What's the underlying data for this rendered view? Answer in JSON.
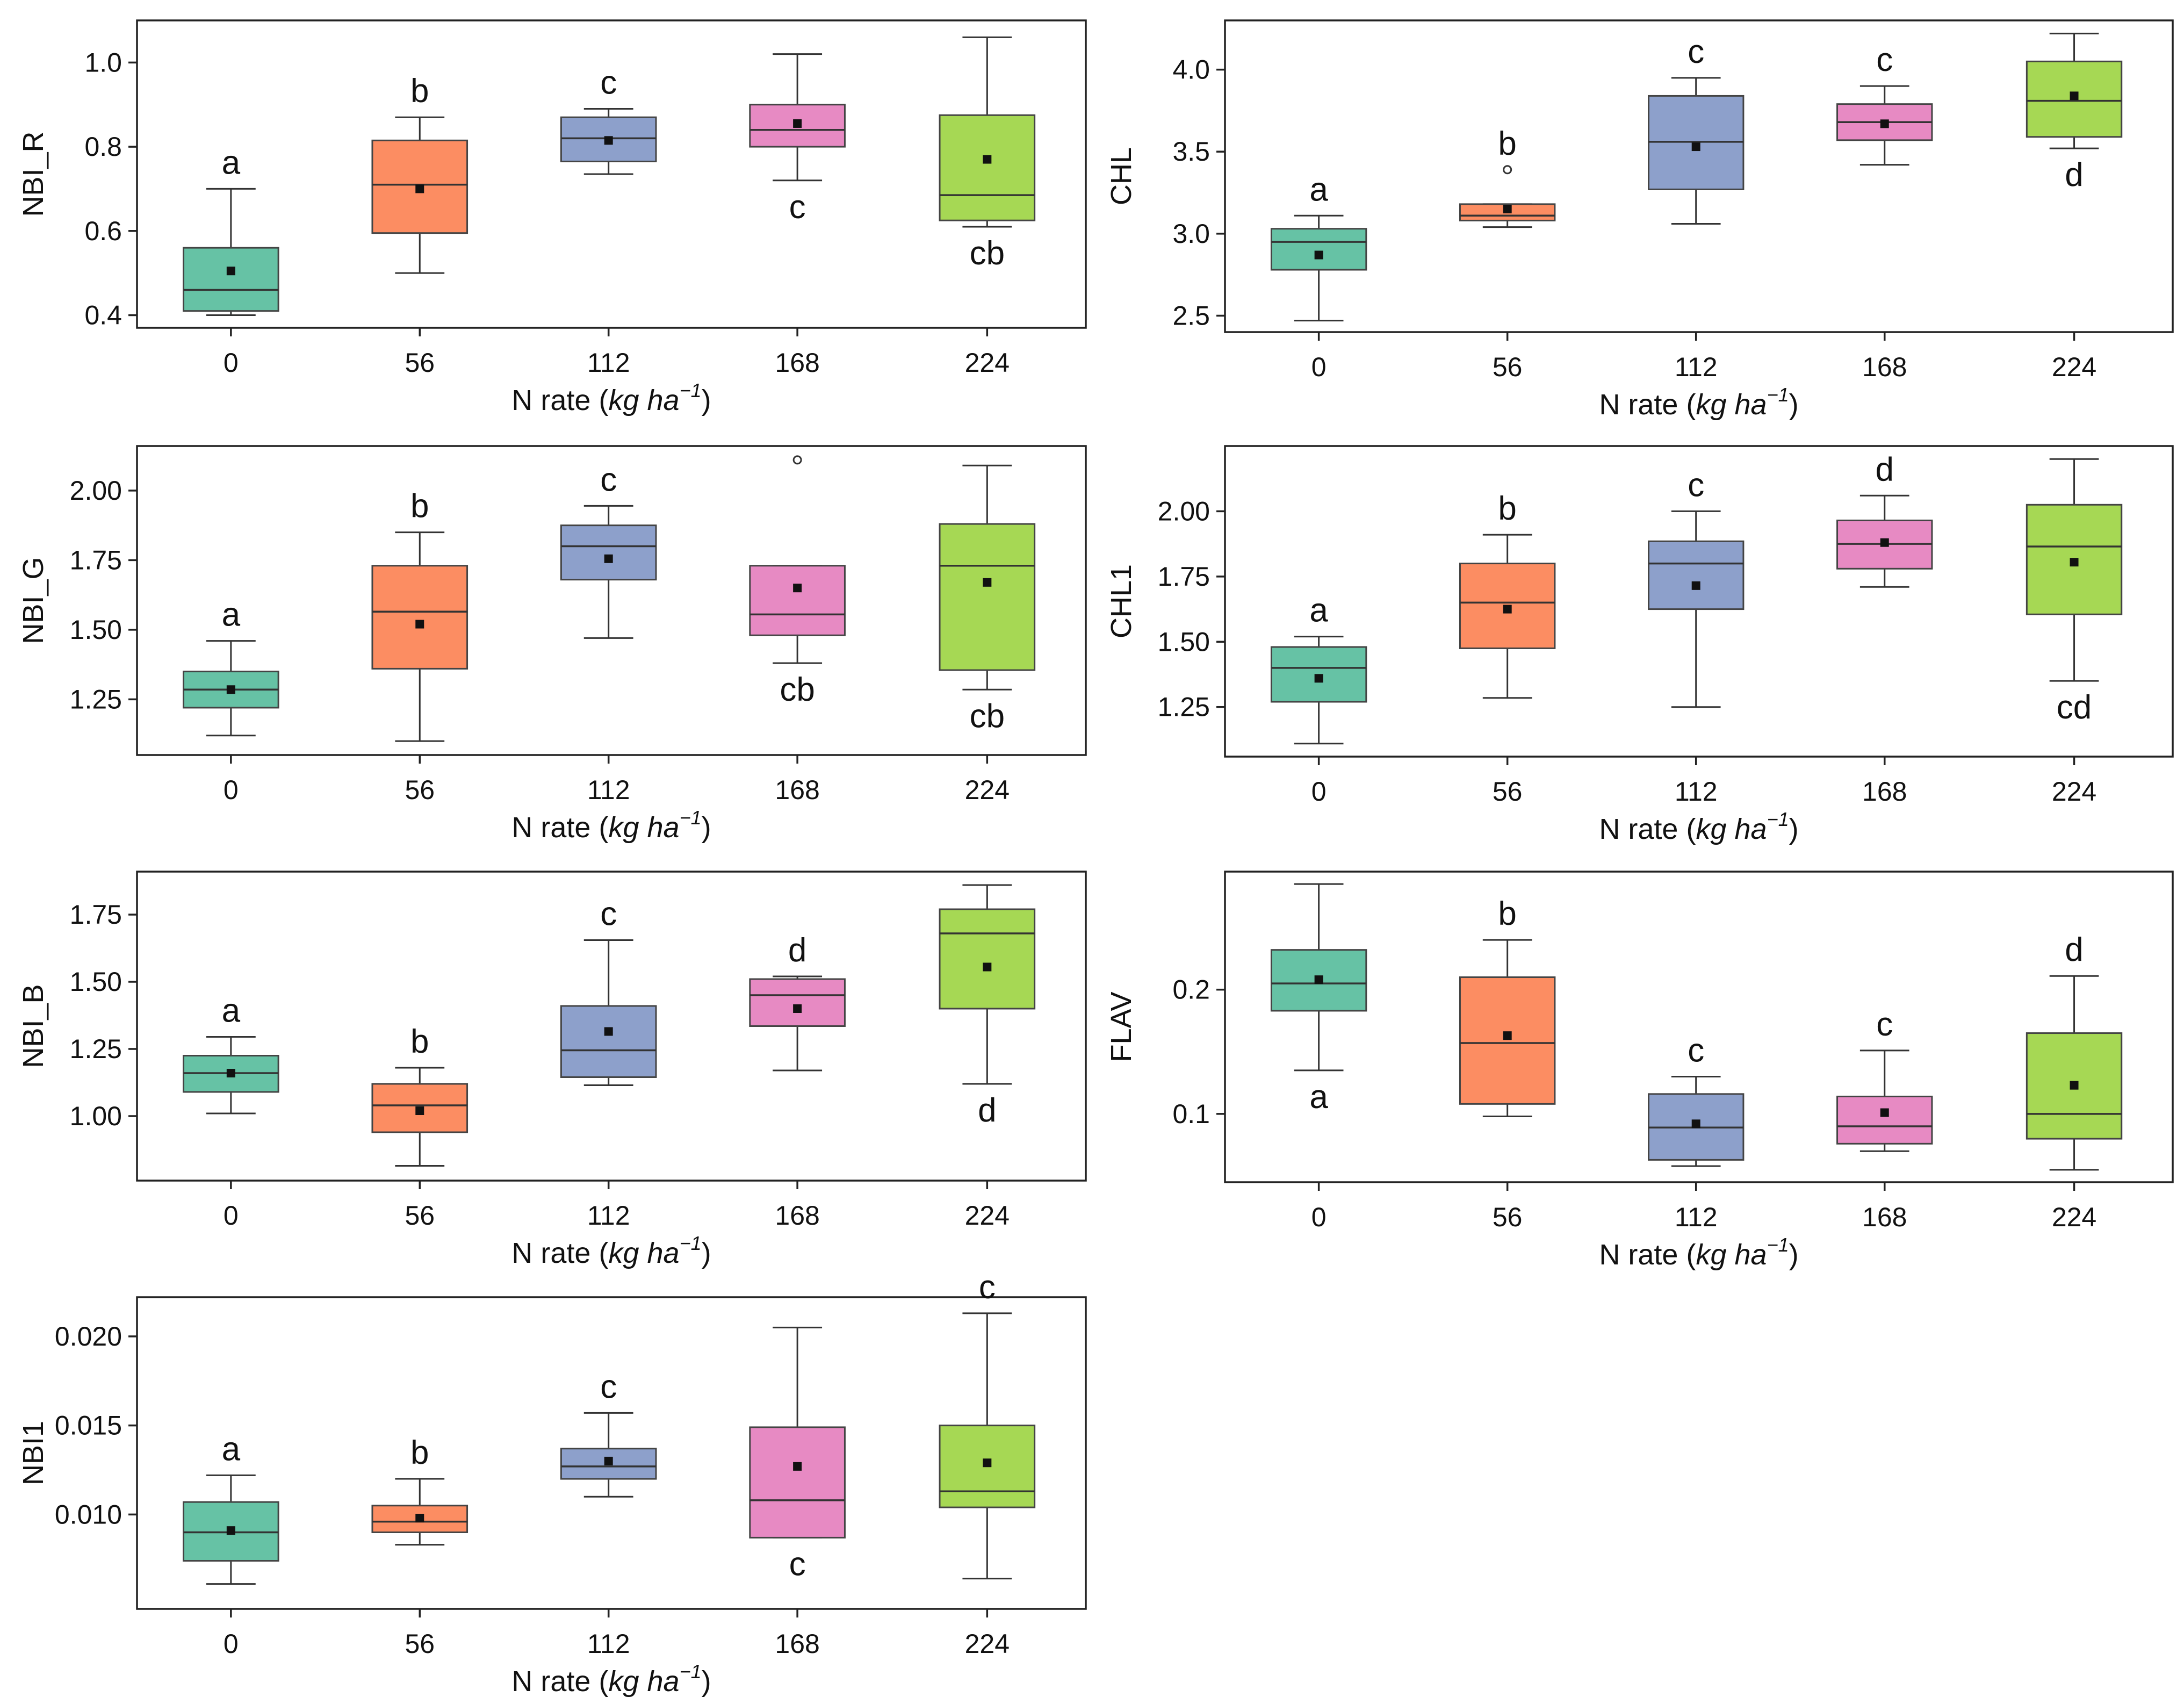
{
  "figure": {
    "colors": {
      "0": "#66c2a5",
      "56": "#fc8d62",
      "112": "#8da0cb",
      "168": "#e78ac3",
      "224": "#a6d854"
    }
  },
  "chart_data": [
    {
      "type": "box",
      "ylabel": "NBI_R",
      "xlabel_prefix": "N rate (",
      "xlabel_unit": "kg ha",
      "xlabel_exp": "−1",
      "xlabel_suffix": ")",
      "categories": [
        "0",
        "56",
        "112",
        "168",
        "224"
      ],
      "ylim": [
        0.37,
        1.1
      ],
      "yticks": [
        0.4,
        0.6,
        0.8,
        1.0
      ],
      "ytick_labels": [
        "0.4",
        "0.6",
        "0.8",
        "1.0"
      ],
      "boxes": [
        {
          "min": 0.4,
          "q1": 0.41,
          "median": 0.46,
          "q3": 0.56,
          "max": 0.7,
          "mean": 0.505,
          "outliers": [],
          "letter": "a",
          "letter_pos": "above"
        },
        {
          "min": 0.5,
          "q1": 0.595,
          "median": 0.71,
          "q3": 0.815,
          "max": 0.87,
          "mean": 0.7,
          "outliers": [],
          "letter": "b",
          "letter_pos": "above"
        },
        {
          "min": 0.735,
          "q1": 0.765,
          "median": 0.82,
          "q3": 0.87,
          "max": 0.89,
          "mean": 0.815,
          "outliers": [],
          "letter": "c",
          "letter_pos": "above"
        },
        {
          "min": 0.72,
          "q1": 0.8,
          "median": 0.84,
          "q3": 0.9,
          "max": 1.02,
          "mean": 0.855,
          "outliers": [],
          "letter": "c",
          "letter_pos": "below"
        },
        {
          "min": 0.61,
          "q1": 0.625,
          "median": 0.685,
          "q3": 0.875,
          "max": 1.06,
          "mean": 0.77,
          "outliers": [],
          "letter": "cb",
          "letter_pos": "below"
        }
      ]
    },
    {
      "type": "box",
      "ylabel": "CHL",
      "xlabel_prefix": "N rate (",
      "xlabel_unit": "kg ha",
      "xlabel_exp": "−1",
      "xlabel_suffix": ")",
      "categories": [
        "0",
        "56",
        "112",
        "168",
        "224"
      ],
      "ylim": [
        2.4,
        4.3
      ],
      "yticks": [
        2.5,
        3.0,
        3.5,
        4.0
      ],
      "ytick_labels": [
        "2.5",
        "3.0",
        "3.5",
        "4.0"
      ],
      "boxes": [
        {
          "min": 2.47,
          "q1": 2.78,
          "median": 2.95,
          "q3": 3.03,
          "max": 3.11,
          "mean": 2.87,
          "outliers": [],
          "letter": "a",
          "letter_pos": "above"
        },
        {
          "min": 3.04,
          "q1": 3.08,
          "median": 3.11,
          "q3": 3.18,
          "max": 3.18,
          "mean": 3.15,
          "outliers": [
            3.39
          ],
          "letter": "b",
          "letter_pos": "above"
        },
        {
          "min": 3.06,
          "q1": 3.27,
          "median": 3.56,
          "q3": 3.84,
          "max": 3.95,
          "mean": 3.53,
          "outliers": [],
          "letter": "c",
          "letter_pos": "above"
        },
        {
          "min": 3.42,
          "q1": 3.57,
          "median": 3.68,
          "q3": 3.79,
          "max": 3.9,
          "mean": 3.67,
          "outliers": [],
          "letter": "c",
          "letter_pos": "above"
        },
        {
          "min": 3.52,
          "q1": 3.59,
          "median": 3.81,
          "q3": 4.05,
          "max": 4.22,
          "mean": 3.84,
          "outliers": [],
          "letter": "d",
          "letter_pos": "below"
        }
      ]
    },
    {
      "type": "box",
      "ylabel": "NBI_G",
      "xlabel_prefix": "N rate (",
      "xlabel_unit": "kg ha",
      "xlabel_exp": "−1",
      "xlabel_suffix": ")",
      "categories": [
        "0",
        "56",
        "112",
        "168",
        "224"
      ],
      "ylim": [
        1.05,
        2.16
      ],
      "yticks": [
        1.25,
        1.5,
        1.75,
        2.0
      ],
      "ytick_labels": [
        "1.25",
        "1.50",
        "1.75",
        "2.00"
      ],
      "boxes": [
        {
          "min": 1.12,
          "q1": 1.22,
          "median": 1.285,
          "q3": 1.35,
          "max": 1.46,
          "mean": 1.285,
          "outliers": [],
          "letter": "a",
          "letter_pos": "above"
        },
        {
          "min": 1.1,
          "q1": 1.36,
          "median": 1.565,
          "q3": 1.73,
          "max": 1.85,
          "mean": 1.52,
          "outliers": [],
          "letter": "b",
          "letter_pos": "above"
        },
        {
          "min": 1.47,
          "q1": 1.68,
          "median": 1.8,
          "q3": 1.875,
          "max": 1.945,
          "mean": 1.755,
          "outliers": [],
          "letter": "c",
          "letter_pos": "above"
        },
        {
          "min": 1.38,
          "q1": 1.48,
          "median": 1.555,
          "q3": 1.73,
          "max": 1.73,
          "mean": 1.65,
          "outliers": [
            2.11
          ],
          "letter": "cb",
          "letter_pos": "below"
        },
        {
          "min": 1.285,
          "q1": 1.355,
          "median": 1.73,
          "q3": 1.88,
          "max": 2.09,
          "mean": 1.67,
          "outliers": [],
          "letter": "cb",
          "letter_pos": "below"
        }
      ]
    },
    {
      "type": "box",
      "ylabel": "CHL1",
      "xlabel_prefix": "N rate (",
      "xlabel_unit": "kg ha",
      "xlabel_exp": "−1",
      "xlabel_suffix": ")",
      "categories": [
        "0",
        "56",
        "112",
        "168",
        "224"
      ],
      "ylim": [
        1.06,
        2.25
      ],
      "yticks": [
        1.25,
        1.5,
        1.75,
        2.0
      ],
      "ytick_labels": [
        "1.25",
        "1.50",
        "1.75",
        "2.00"
      ],
      "boxes": [
        {
          "min": 1.11,
          "q1": 1.27,
          "median": 1.4,
          "q3": 1.48,
          "max": 1.52,
          "mean": 1.36,
          "outliers": [],
          "letter": "a",
          "letter_pos": "above"
        },
        {
          "min": 1.285,
          "q1": 1.475,
          "median": 1.65,
          "q3": 1.8,
          "max": 1.91,
          "mean": 1.625,
          "outliers": [],
          "letter": "b",
          "letter_pos": "above"
        },
        {
          "min": 1.25,
          "q1": 1.625,
          "median": 1.8,
          "q3": 1.885,
          "max": 2.0,
          "mean": 1.715,
          "outliers": [],
          "letter": "c",
          "letter_pos": "above"
        },
        {
          "min": 1.71,
          "q1": 1.78,
          "median": 1.875,
          "q3": 1.965,
          "max": 2.06,
          "mean": 1.88,
          "outliers": [],
          "letter": "d",
          "letter_pos": "above"
        },
        {
          "min": 1.35,
          "q1": 1.605,
          "median": 1.865,
          "q3": 2.025,
          "max": 2.2,
          "mean": 1.805,
          "outliers": [],
          "letter": "cd",
          "letter_pos": "below"
        }
      ]
    },
    {
      "type": "box",
      "ylabel": "NBI_B",
      "xlabel_prefix": "N rate (",
      "xlabel_unit": "kg ha",
      "xlabel_exp": "−1",
      "xlabel_suffix": ")",
      "categories": [
        "0",
        "56",
        "112",
        "168",
        "224"
      ],
      "ylim": [
        0.76,
        1.91
      ],
      "yticks": [
        1.0,
        1.25,
        1.5,
        1.75
      ],
      "ytick_labels": [
        "1.00",
        "1.25",
        "1.50",
        "1.75"
      ],
      "boxes": [
        {
          "min": 1.01,
          "q1": 1.09,
          "median": 1.16,
          "q3": 1.225,
          "max": 1.295,
          "mean": 1.16,
          "outliers": [],
          "letter": "a",
          "letter_pos": "above"
        },
        {
          "min": 0.815,
          "q1": 0.94,
          "median": 1.04,
          "q3": 1.12,
          "max": 1.18,
          "mean": 1.02,
          "outliers": [],
          "letter": "b",
          "letter_pos": "above"
        },
        {
          "min": 1.115,
          "q1": 1.145,
          "median": 1.245,
          "q3": 1.41,
          "max": 1.655,
          "mean": 1.315,
          "outliers": [],
          "letter": "c",
          "letter_pos": "above"
        },
        {
          "min": 1.17,
          "q1": 1.335,
          "median": 1.45,
          "q3": 1.51,
          "max": 1.52,
          "mean": 1.4,
          "outliers": [],
          "letter": "d",
          "letter_pos": "above"
        },
        {
          "min": 1.12,
          "q1": 1.4,
          "median": 1.68,
          "q3": 1.77,
          "max": 1.86,
          "mean": 1.555,
          "outliers": [],
          "letter": "d",
          "letter_pos": "below"
        }
      ]
    },
    {
      "type": "box",
      "ylabel": "FLAV",
      "xlabel_prefix": "N rate (",
      "xlabel_unit": "kg ha",
      "xlabel_exp": "−1",
      "xlabel_suffix": ")",
      "categories": [
        "0",
        "56",
        "112",
        "168",
        "224"
      ],
      "ylim": [
        0.045,
        0.295
      ],
      "yticks": [
        0.1,
        0.2
      ],
      "ytick_labels": [
        "0.1",
        "0.2"
      ],
      "boxes": [
        {
          "min": 0.135,
          "q1": 0.183,
          "median": 0.205,
          "q3": 0.232,
          "max": 0.285,
          "mean": 0.208,
          "outliers": [],
          "letter": "a",
          "letter_pos": "below"
        },
        {
          "min": 0.098,
          "q1": 0.108,
          "median": 0.157,
          "q3": 0.21,
          "max": 0.24,
          "mean": 0.163,
          "outliers": [],
          "letter": "b",
          "letter_pos": "above"
        },
        {
          "min": 0.058,
          "q1": 0.063,
          "median": 0.089,
          "q3": 0.116,
          "max": 0.13,
          "mean": 0.092,
          "outliers": [],
          "letter": "c",
          "letter_pos": "above"
        },
        {
          "min": 0.07,
          "q1": 0.076,
          "median": 0.09,
          "q3": 0.114,
          "max": 0.151,
          "mean": 0.101,
          "outliers": [],
          "letter": "c",
          "letter_pos": "above"
        },
        {
          "min": 0.055,
          "q1": 0.08,
          "median": 0.1,
          "q3": 0.165,
          "max": 0.211,
          "mean": 0.123,
          "outliers": [],
          "letter": "d",
          "letter_pos": "above"
        }
      ]
    },
    {
      "type": "box",
      "ylabel": "NBI1",
      "xlabel_prefix": "N rate (",
      "xlabel_unit": "kg ha",
      "xlabel_exp": "−1",
      "xlabel_suffix": ")",
      "categories": [
        "0",
        "56",
        "112",
        "168",
        "224"
      ],
      "ylim": [
        0.0047,
        0.0222
      ],
      "yticks": [
        0.01,
        0.015,
        0.02
      ],
      "ytick_labels": [
        "0.010",
        "0.015",
        "0.020"
      ],
      "boxes": [
        {
          "min": 0.0061,
          "q1": 0.0074,
          "median": 0.009,
          "q3": 0.0107,
          "max": 0.0122,
          "mean": 0.0091,
          "outliers": [],
          "letter": "a",
          "letter_pos": "above"
        },
        {
          "min": 0.0083,
          "q1": 0.009,
          "median": 0.0096,
          "q3": 0.0105,
          "max": 0.012,
          "mean": 0.0098,
          "outliers": [],
          "letter": "b",
          "letter_pos": "above"
        },
        {
          "min": 0.011,
          "q1": 0.012,
          "median": 0.0127,
          "q3": 0.0137,
          "max": 0.0157,
          "mean": 0.013,
          "outliers": [],
          "letter": "c",
          "letter_pos": "above"
        },
        {
          "min": 0.0087,
          "q1": 0.0087,
          "median": 0.0108,
          "q3": 0.0149,
          "max": 0.0205,
          "mean": 0.0127,
          "outliers": [],
          "letter": "c",
          "letter_pos": "below"
        },
        {
          "min": 0.0064,
          "q1": 0.0104,
          "median": 0.0113,
          "q3": 0.015,
          "max": 0.0213,
          "mean": 0.0129,
          "outliers": [],
          "letter": "c",
          "letter_pos": "above"
        }
      ]
    }
  ]
}
